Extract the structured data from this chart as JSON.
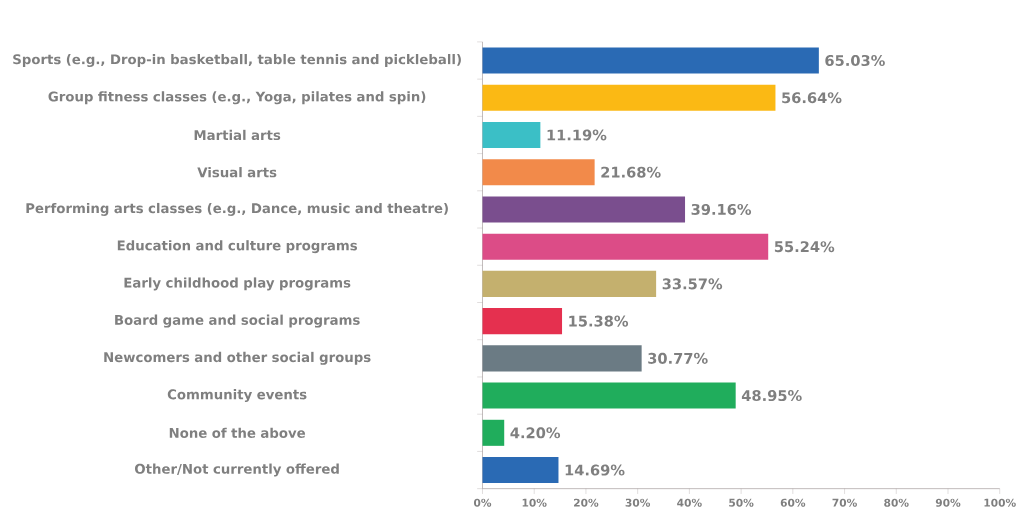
{
  "chart_data": {
    "type": "bar",
    "orientation": "horizontal",
    "categories": [
      "Sports (e.g., Drop-in basketball, table tennis and pickleball)",
      "Group fitness classes (e.g., Yoga, pilates and spin)",
      "Martial arts",
      "Visual arts",
      "Performing arts classes (e.g., Dance, music and theatre)",
      "Education and culture programs",
      "Early childhood play programs",
      "Board game and social programs",
      "Newcomers and other social groups",
      "Community events",
      "None of the above",
      "Other/Not currently offered"
    ],
    "values": [
      65.03,
      56.64,
      11.19,
      21.68,
      39.16,
      55.24,
      33.57,
      15.38,
      30.77,
      48.95,
      4.2,
      14.69
    ],
    "colors": [
      "#2a6ab4",
      "#fbb914",
      "#3bbfc6",
      "#f28a4a",
      "#7a4e8e",
      "#dc4c87",
      "#c4b06e",
      "#e5304f",
      "#6b7b84",
      "#20ad5c",
      "#20ad5c",
      "#2a6ab4"
    ],
    "value_labels": [
      "65.03%",
      "56.64%",
      "11.19%",
      "21.68%",
      "39.16%",
      "55.24%",
      "33.57%",
      "15.38%",
      "30.77%",
      "48.95%",
      "4.20%",
      "14.69%"
    ],
    "xlim": [
      0,
      100
    ],
    "xticks": [
      {
        "value": 0,
        "label": "0%"
      },
      {
        "value": 10,
        "label": "10%"
      },
      {
        "value": 20,
        "label": "20%"
      },
      {
        "value": 30,
        "label": "30%"
      },
      {
        "value": 40,
        "label": "40%"
      },
      {
        "value": 50,
        "label": "50%"
      },
      {
        "value": 60,
        "label": "60%"
      },
      {
        "value": 70,
        "label": "70%"
      },
      {
        "value": 80,
        "label": "80%"
      },
      {
        "value": 90,
        "label": "90%"
      },
      {
        "value": 100,
        "label": "100%"
      }
    ]
  }
}
